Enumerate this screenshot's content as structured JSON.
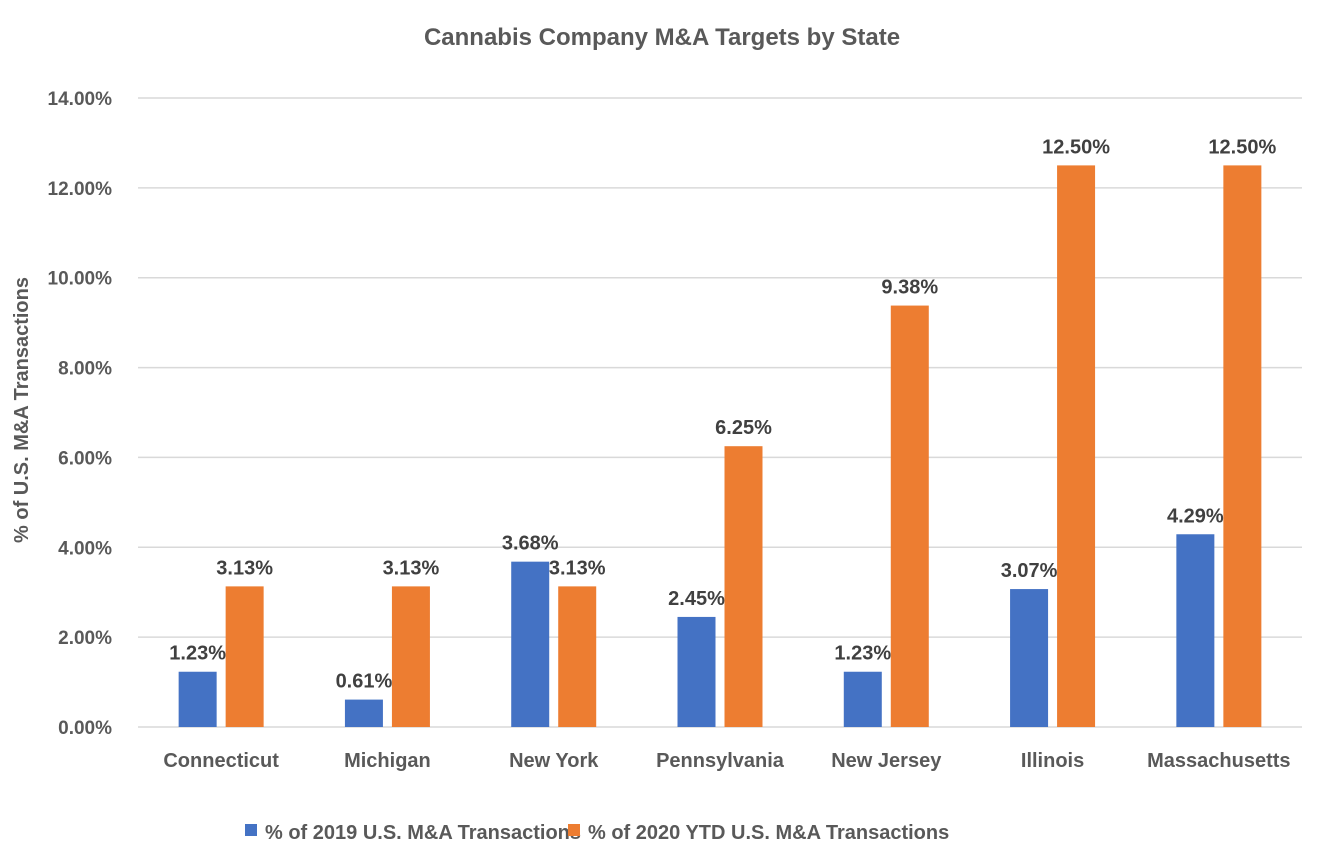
{
  "chart_data": {
    "type": "bar",
    "title": "Cannabis Company M&A Targets by State",
    "xlabel": "",
    "ylabel": "% of U.S. M&A Transactions",
    "ylim": [
      0,
      14
    ],
    "yticks": [
      0,
      2,
      4,
      6,
      8,
      10,
      12,
      14
    ],
    "ytick_labels": [
      "0.00%",
      "2.00%",
      "4.00%",
      "6.00%",
      "8.00%",
      "10.00%",
      "12.00%",
      "14.00%"
    ],
    "grid": true,
    "legend_position": "bottom",
    "categories": [
      "Connecticut",
      "Michigan",
      "New York",
      "Pennsylvania",
      "New Jersey",
      "Illinois",
      "Massachusetts"
    ],
    "series": [
      {
        "name": "% of 2019 U.S. M&A Transactions",
        "color": "#4472c4",
        "values": [
          1.23,
          0.61,
          3.68,
          2.45,
          1.23,
          3.07,
          4.29
        ],
        "labels": [
          "1.23%",
          "0.61%",
          "3.68%",
          "2.45%",
          "1.23%",
          "3.07%",
          "4.29%"
        ]
      },
      {
        "name": "% of 2020 YTD U.S. M&A Transactions",
        "color": "#ed7d31",
        "values": [
          3.13,
          3.13,
          3.13,
          6.25,
          9.38,
          12.5,
          12.5
        ],
        "labels": [
          "3.13%",
          "3.13%",
          "3.13%",
          "6.25%",
          "9.38%",
          "12.50%",
          "12.50%"
        ]
      }
    ]
  }
}
